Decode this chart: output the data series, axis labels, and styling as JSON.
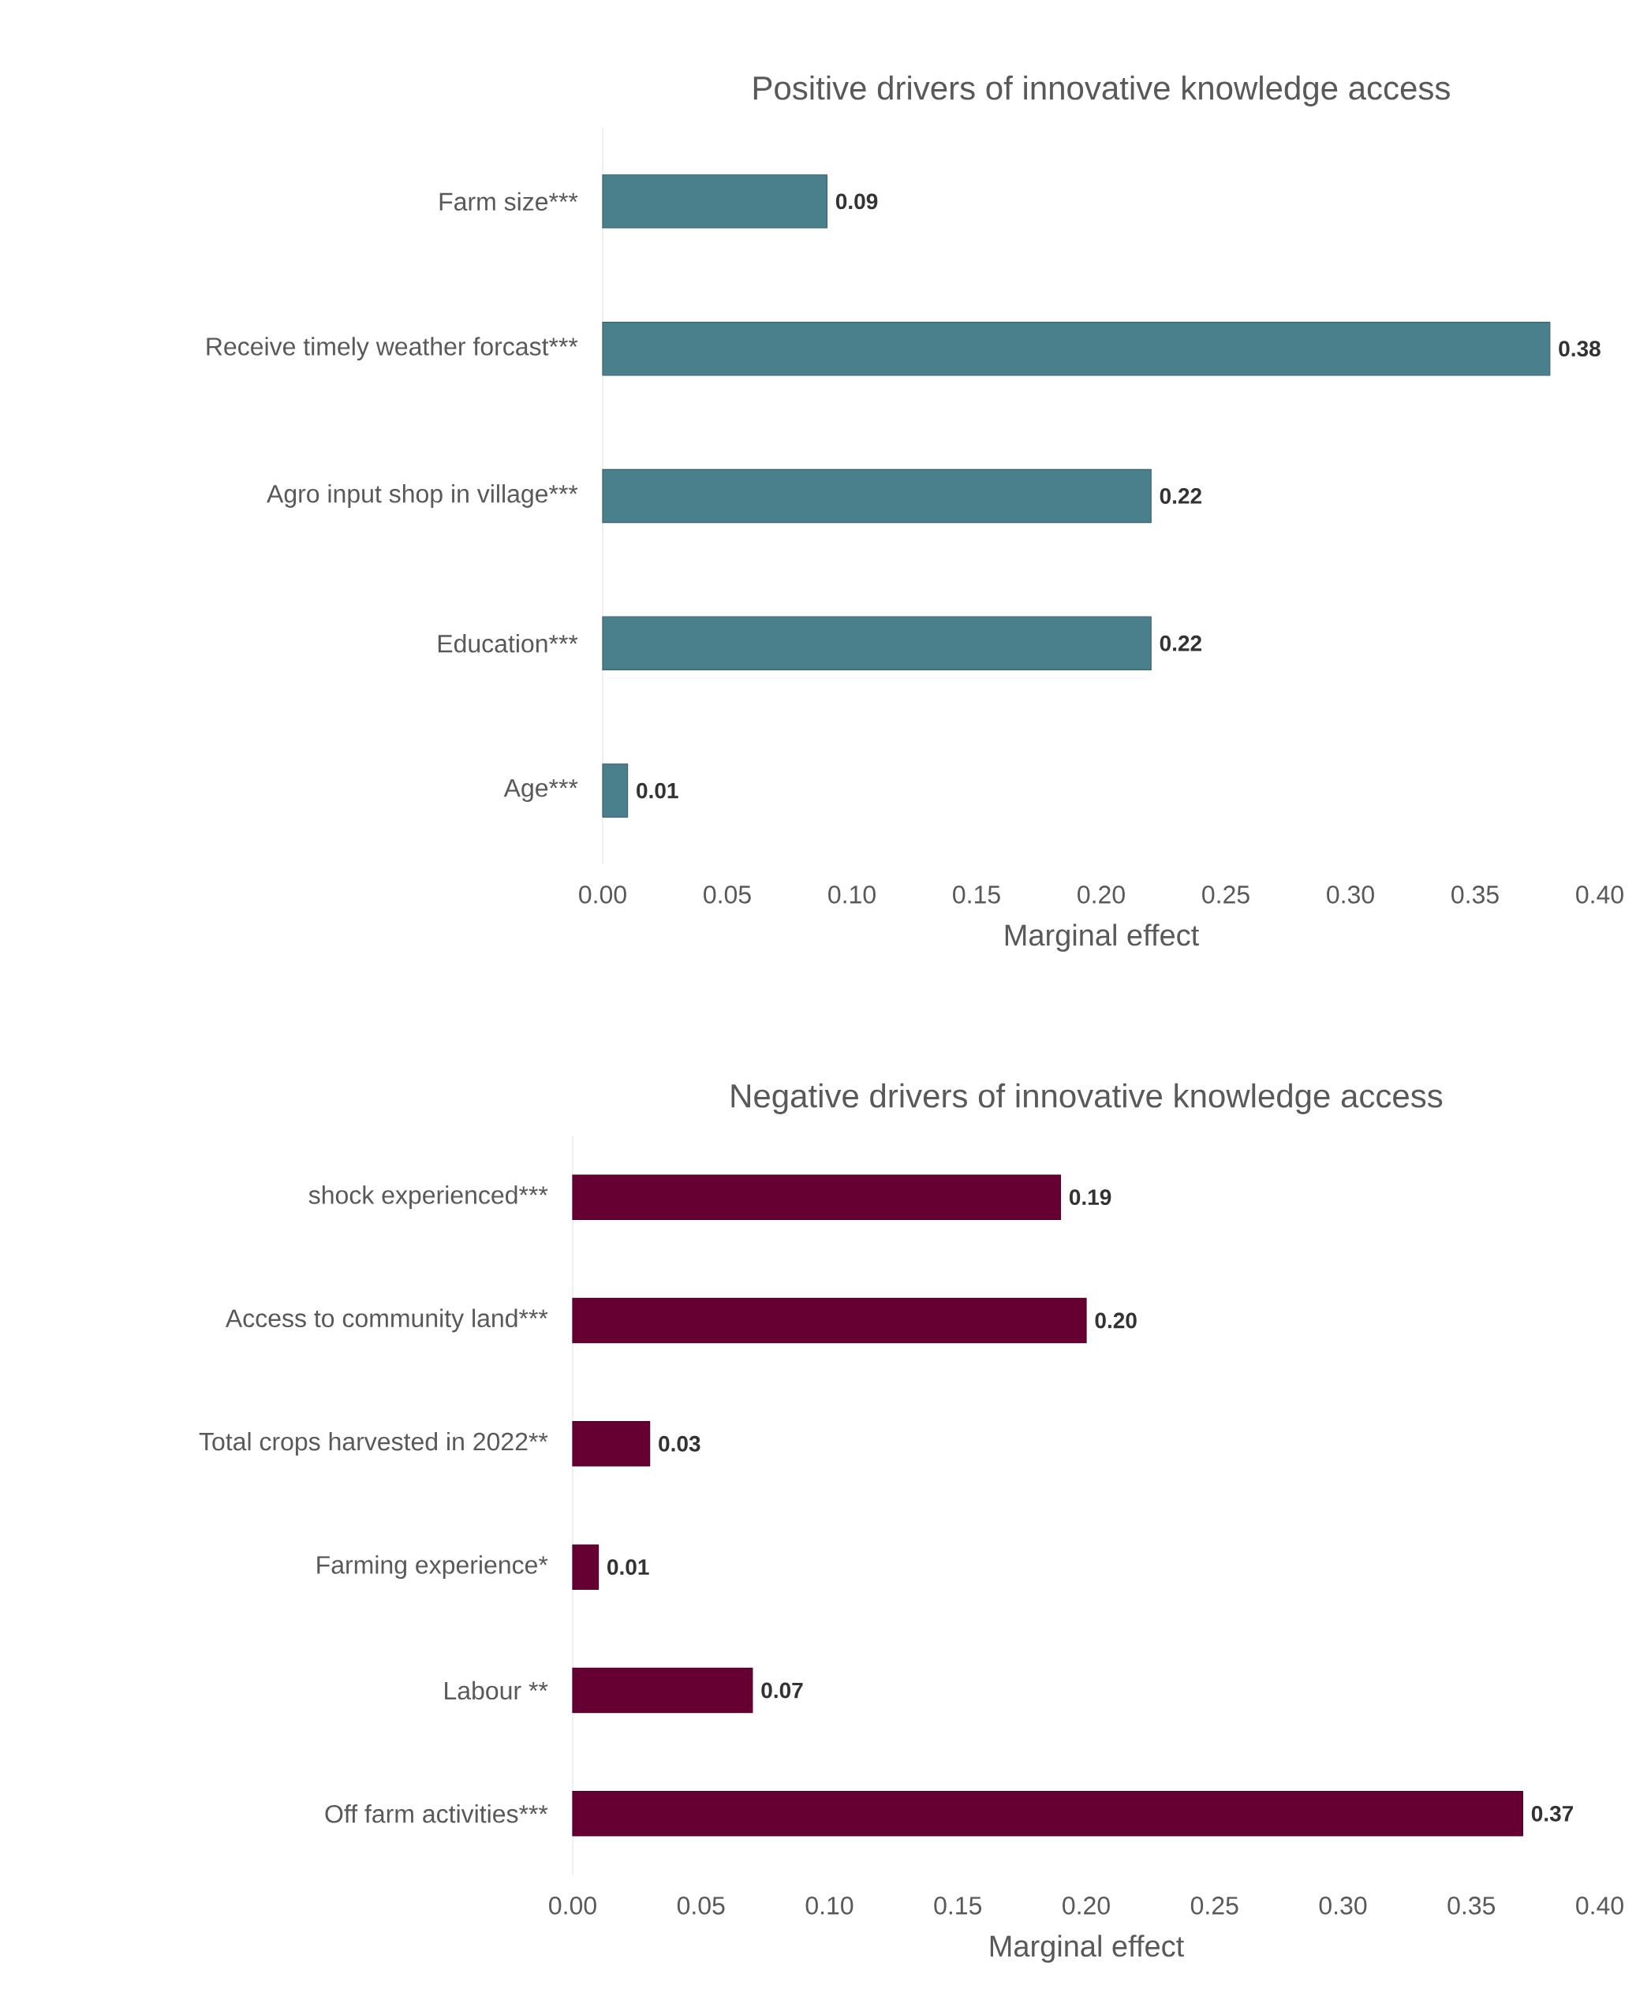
{
  "chart_data": [
    {
      "type": "bar",
      "orientation": "horizontal",
      "title": "Positive drivers of innovative knowledge access",
      "xlabel": "Marginal effect",
      "categories": [
        "Farm size***",
        "Receive timely weather forcast***",
        "Agro input shop in village***",
        "Education***",
        "Age***"
      ],
      "values": [
        0.09,
        0.38,
        0.22,
        0.22,
        0.01
      ],
      "color": "#4a7f8c",
      "value_labels": [
        "0.09",
        "0.38",
        "0.22",
        "0.22",
        "0.01"
      ],
      "xlim": [
        0,
        0.4
      ],
      "xticks": [
        {
          "value": 0,
          "label": "0.00"
        },
        {
          "value": 0.05,
          "label": "0.05"
        },
        {
          "value": 0.1,
          "label": "0.10"
        },
        {
          "value": 0.15,
          "label": "0.15"
        },
        {
          "value": 0.2,
          "label": "0.20"
        },
        {
          "value": 0.25,
          "label": "0.25"
        },
        {
          "value": 0.3,
          "label": "0.30"
        },
        {
          "value": 0.35,
          "label": "0.35"
        },
        {
          "value": 0.4,
          "label": "0.40"
        }
      ]
    },
    {
      "type": "bar",
      "orientation": "horizontal",
      "title": "Negative drivers of innovative knowledge access",
      "xlabel": "Marginal effect",
      "categories": [
        "shock experienced***",
        "Access to community land***",
        "Total crops harvested in 2022**",
        "Farming experience*",
        "Labour **",
        "Off farm activities***"
      ],
      "values": [
        0.19,
        0.2,
        0.03,
        0.01,
        0.07,
        0.37
      ],
      "color": "#660033",
      "value_labels": [
        "0.19",
        "0.20",
        "0.03",
        "0.01",
        "0.07",
        "0.37"
      ],
      "xlim": [
        0,
        0.4
      ],
      "xticks": [
        {
          "value": 0,
          "label": "0.00"
        },
        {
          "value": 0.05,
          "label": "0.05"
        },
        {
          "value": 0.1,
          "label": "0.10"
        },
        {
          "value": 0.15,
          "label": "0.15"
        },
        {
          "value": 0.2,
          "label": "0.20"
        },
        {
          "value": 0.25,
          "label": "0.25"
        },
        {
          "value": 0.3,
          "label": "0.30"
        },
        {
          "value": 0.35,
          "label": "0.35"
        },
        {
          "value": 0.4,
          "label": "0.40"
        }
      ]
    }
  ]
}
